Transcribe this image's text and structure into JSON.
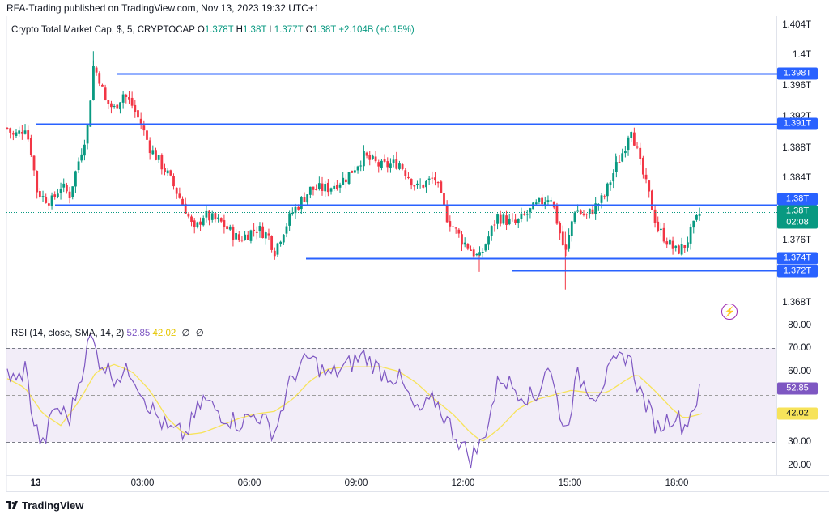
{
  "header": {
    "published_line": "RFA-Trading published on TradingView.com, Nov 13, 2023 19:32 UTC+1"
  },
  "legend": {
    "symbol": "Crypto Total Market Cap, $, 5, CRYPTOCAP",
    "o_label": "O",
    "o_value": "1.378T",
    "h_label": "H",
    "h_value": "1.38T",
    "l_label": "L",
    "l_value": "1.377T",
    "c_label": "C",
    "c_value": "1.38T",
    "change": "+2.104B (+0.15%)"
  },
  "rsi_legend": {
    "label": "RSI (14, close, SMA, 14, 2)",
    "rsi_value": "52.85",
    "sma_value": "42.02",
    "icon_a": "∅",
    "icon_b": "∅"
  },
  "price_axis": {
    "ticks": [
      "1.404T",
      "1.4T",
      "1.396T",
      "1.392T",
      "1.388T",
      "1.384T",
      "1.376T",
      "1.368T"
    ]
  },
  "rsi_axis": {
    "ticks": [
      "80.00",
      "70.00",
      "60.00",
      "30.00",
      "20.00"
    ]
  },
  "time_axis": {
    "ticks": [
      {
        "label": "13",
        "bold": true
      },
      {
        "label": "03:00",
        "bold": false
      },
      {
        "label": "06:00",
        "bold": false
      },
      {
        "label": "09:00",
        "bold": false
      },
      {
        "label": "12:00",
        "bold": false
      },
      {
        "label": "15:00",
        "bold": false
      },
      {
        "label": "18:00",
        "bold": false
      }
    ]
  },
  "tags": {
    "level_1398": "1.398T",
    "level_1391": "1.391T",
    "level_138": "1.38T",
    "last_price": "1.38T",
    "countdown": "02:08",
    "level_1374": "1.374T",
    "level_1372": "1.372T",
    "rsi_last": "52.85",
    "sma_last": "42.02"
  },
  "brand": {
    "logo_text": "TradingView"
  },
  "colors": {
    "up": "#089981",
    "down": "#f23645",
    "level_line": "#2962ff",
    "rsi_line": "#7e57c2",
    "rsi_sma": "#f7e35a",
    "rsi_band": "#ede7f6",
    "last_price_tag": "#089981"
  },
  "chart_data": [
    {
      "type": "candlestick",
      "title": "Crypto Total Market Cap, $, 5, CRYPTOCAP",
      "interval": "5 min",
      "x_range": [
        "13 00:00",
        "13 19:35"
      ],
      "ylim": [
        1.366,
        1.405
      ],
      "y_unit": "T USD",
      "ohlc_last": {
        "open": 1.378,
        "high": 1.38,
        "low": 1.377,
        "close": 1.38
      },
      "horizontal_levels": [
        1.398,
        1.391,
        1.38,
        1.374,
        1.372
      ],
      "close_path_approx": [
        {
          "t": "00:00",
          "close": 1.3905
        },
        {
          "t": "00:10",
          "close": 1.3895
        },
        {
          "t": "00:20",
          "close": 1.3899
        },
        {
          "t": "00:30",
          "close": 1.3908
        },
        {
          "t": "00:40",
          "close": 1.3875
        },
        {
          "t": "00:50",
          "close": 1.3824
        },
        {
          "t": "01:00",
          "close": 1.3815
        },
        {
          "t": "01:15",
          "close": 1.381
        },
        {
          "t": "01:30",
          "close": 1.383
        },
        {
          "t": "01:45",
          "close": 1.3818
        },
        {
          "t": "02:00",
          "close": 1.3862
        },
        {
          "t": "02:15",
          "close": 1.3905
        },
        {
          "t": "02:25",
          "close": 1.3985
        },
        {
          "t": "02:35",
          "close": 1.397
        },
        {
          "t": "02:45",
          "close": 1.394
        },
        {
          "t": "03:00",
          "close": 1.393
        },
        {
          "t": "03:15",
          "close": 1.395
        },
        {
          "t": "03:30",
          "close": 1.3935
        },
        {
          "t": "03:45",
          "close": 1.391
        },
        {
          "t": "04:00",
          "close": 1.388
        },
        {
          "t": "04:30",
          "close": 1.3845
        },
        {
          "t": "05:00",
          "close": 1.38
        },
        {
          "t": "05:15",
          "close": 1.377
        },
        {
          "t": "05:30",
          "close": 1.3792
        },
        {
          "t": "06:00",
          "close": 1.3782
        },
        {
          "t": "06:30",
          "close": 1.376
        },
        {
          "t": "07:00",
          "close": 1.3775
        },
        {
          "t": "07:20",
          "close": 1.3765
        },
        {
          "t": "07:30",
          "close": 1.3745
        },
        {
          "t": "07:45",
          "close": 1.3772
        },
        {
          "t": "08:00",
          "close": 1.3795
        },
        {
          "t": "08:30",
          "close": 1.3825
        },
        {
          "t": "09:00",
          "close": 1.3827
        },
        {
          "t": "09:30",
          "close": 1.384
        },
        {
          "t": "10:00",
          "close": 1.3868
        },
        {
          "t": "10:30",
          "close": 1.3855
        },
        {
          "t": "11:00",
          "close": 1.386
        },
        {
          "t": "11:30",
          "close": 1.3827
        },
        {
          "t": "12:00",
          "close": 1.384
        },
        {
          "t": "12:20",
          "close": 1.379
        },
        {
          "t": "12:45",
          "close": 1.376
        },
        {
          "t": "13:15",
          "close": 1.3735
        },
        {
          "t": "13:45",
          "close": 1.379
        },
        {
          "t": "14:15",
          "close": 1.378
        },
        {
          "t": "14:45",
          "close": 1.38
        },
        {
          "t": "15:15",
          "close": 1.3818
        },
        {
          "t": "15:40",
          "close": 1.374
        },
        {
          "t": "15:55",
          "close": 1.38
        },
        {
          "t": "16:15",
          "close": 1.379
        },
        {
          "t": "16:45",
          "close": 1.3815
        },
        {
          "t": "17:00",
          "close": 1.3845
        },
        {
          "t": "17:20",
          "close": 1.388
        },
        {
          "t": "17:30",
          "close": 1.391
        },
        {
          "t": "17:45",
          "close": 1.386
        },
        {
          "t": "18:00",
          "close": 1.382
        },
        {
          "t": "18:15",
          "close": 1.3775
        },
        {
          "t": "18:30",
          "close": 1.376
        },
        {
          "t": "18:45",
          "close": 1.3745
        },
        {
          "t": "19:00",
          "close": 1.375
        },
        {
          "t": "19:15",
          "close": 1.3775
        },
        {
          "t": "19:30",
          "close": 1.38
        }
      ]
    },
    {
      "type": "line",
      "title": "RSI (14, close, SMA, 14, 2)",
      "ylim": [
        15,
        80
      ],
      "bands": {
        "upper": 70,
        "middle": 50,
        "lower": 30
      },
      "series": [
        {
          "name": "RSI",
          "values_approx": [
            {
              "t": "00:00",
              "v": 60
            },
            {
              "t": "00:15",
              "v": 55
            },
            {
              "t": "00:30",
              "v": 62
            },
            {
              "t": "00:45",
              "v": 38
            },
            {
              "t": "01:00",
              "v": 28
            },
            {
              "t": "01:20",
              "v": 45
            },
            {
              "t": "01:45",
              "v": 40
            },
            {
              "t": "02:05",
              "v": 60
            },
            {
              "t": "02:20",
              "v": 75
            },
            {
              "t": "02:35",
              "v": 65
            },
            {
              "t": "03:00",
              "v": 58
            },
            {
              "t": "03:30",
              "v": 60
            },
            {
              "t": "04:00",
              "v": 45
            },
            {
              "t": "04:30",
              "v": 35
            },
            {
              "t": "05:00",
              "v": 33
            },
            {
              "t": "05:30",
              "v": 48
            },
            {
              "t": "06:00",
              "v": 42
            },
            {
              "t": "06:30",
              "v": 38
            },
            {
              "t": "07:00",
              "v": 42
            },
            {
              "t": "07:30",
              "v": 34
            },
            {
              "t": "08:00",
              "v": 58
            },
            {
              "t": "08:30",
              "v": 66
            },
            {
              "t": "09:00",
              "v": 58
            },
            {
              "t": "09:30",
              "v": 62
            },
            {
              "t": "10:00",
              "v": 67
            },
            {
              "t": "10:30",
              "v": 60
            },
            {
              "t": "11:00",
              "v": 57
            },
            {
              "t": "11:30",
              "v": 42
            },
            {
              "t": "12:00",
              "v": 48
            },
            {
              "t": "12:30",
              "v": 35
            },
            {
              "t": "13:00",
              "v": 23
            },
            {
              "t": "13:20",
              "v": 30
            },
            {
              "t": "13:50",
              "v": 58
            },
            {
              "t": "14:20",
              "v": 52
            },
            {
              "t": "14:50",
              "v": 48
            },
            {
              "t": "15:10",
              "v": 64
            },
            {
              "t": "15:40",
              "v": 34
            },
            {
              "t": "16:00",
              "v": 58
            },
            {
              "t": "16:30",
              "v": 50
            },
            {
              "t": "17:00",
              "v": 62
            },
            {
              "t": "17:25",
              "v": 68
            },
            {
              "t": "17:45",
              "v": 52
            },
            {
              "t": "18:15",
              "v": 36
            },
            {
              "t": "18:45",
              "v": 42
            },
            {
              "t": "19:00",
              "v": 36
            },
            {
              "t": "19:15",
              "v": 45
            },
            {
              "t": "19:30",
              "v": 52.85
            }
          ]
        },
        {
          "name": "SMA",
          "values_approx": [
            {
              "t": "00:00",
              "v": 57
            },
            {
              "t": "00:30",
              "v": 53
            },
            {
              "t": "01:00",
              "v": 42
            },
            {
              "t": "01:30",
              "v": 37
            },
            {
              "t": "02:00",
              "v": 47
            },
            {
              "t": "02:30",
              "v": 60
            },
            {
              "t": "03:00",
              "v": 63
            },
            {
              "t": "03:30",
              "v": 60
            },
            {
              "t": "04:00",
              "v": 52
            },
            {
              "t": "04:30",
              "v": 40
            },
            {
              "t": "05:00",
              "v": 33
            },
            {
              "t": "05:30",
              "v": 34
            },
            {
              "t": "06:00",
              "v": 37
            },
            {
              "t": "06:30",
              "v": 40
            },
            {
              "t": "07:00",
              "v": 42
            },
            {
              "t": "07:30",
              "v": 43
            },
            {
              "t": "08:00",
              "v": 48
            },
            {
              "t": "08:30",
              "v": 56
            },
            {
              "t": "09:00",
              "v": 61
            },
            {
              "t": "09:30",
              "v": 62
            },
            {
              "t": "10:00",
              "v": 62
            },
            {
              "t": "10:30",
              "v": 62
            },
            {
              "t": "11:00",
              "v": 60
            },
            {
              "t": "11:30",
              "v": 55
            },
            {
              "t": "12:00",
              "v": 48
            },
            {
              "t": "12:30",
              "v": 42
            },
            {
              "t": "13:00",
              "v": 34
            },
            {
              "t": "13:20",
              "v": 30
            },
            {
              "t": "13:50",
              "v": 36
            },
            {
              "t": "14:20",
              "v": 44
            },
            {
              "t": "14:50",
              "v": 48
            },
            {
              "t": "15:20",
              "v": 50
            },
            {
              "t": "15:50",
              "v": 52
            },
            {
              "t": "16:20",
              "v": 51
            },
            {
              "t": "16:50",
              "v": 51
            },
            {
              "t": "17:20",
              "v": 56
            },
            {
              "t": "17:40",
              "v": 59
            },
            {
              "t": "18:10",
              "v": 52
            },
            {
              "t": "18:40",
              "v": 44
            },
            {
              "t": "19:00",
              "v": 40
            },
            {
              "t": "19:30",
              "v": 42.02
            }
          ]
        }
      ]
    }
  ]
}
